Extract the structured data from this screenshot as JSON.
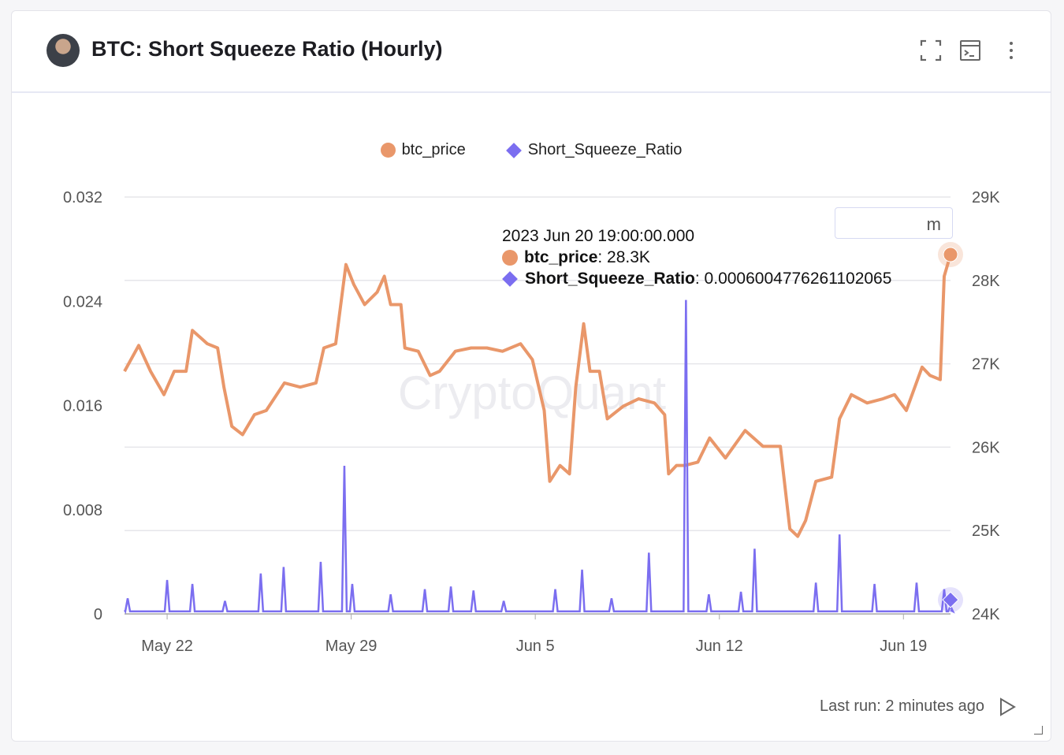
{
  "header": {
    "title": "BTC: Short Squeeze Ratio (Hourly)"
  },
  "footer": {
    "last_run": "Last run: 2 minutes ago"
  },
  "zoom_box": {
    "label": "m"
  },
  "watermark": "CryptoQuant",
  "tooltip": {
    "time": "2023 Jun 20 19:00:00.000",
    "price_label": "btc_price",
    "price_value": ": 28.3K",
    "ratio_label": "Short_Squeeze_Ratio",
    "ratio_value": ": 0.0006004776261102065"
  },
  "colors": {
    "price": "#e9976a",
    "ratio": "#7b6ef0"
  },
  "chart_data": {
    "type": "line",
    "x_unit": "days since 2023-05-22 00:00",
    "legend": [
      "btc_price",
      "Short_Squeeze_Ratio"
    ],
    "legend_position": "top-center",
    "x_ticks": [
      {
        "label": "May 22",
        "x": 0
      },
      {
        "label": "May 29",
        "x": 7
      },
      {
        "label": "Jun 5",
        "x": 14
      },
      {
        "label": "Jun 12",
        "x": 21
      },
      {
        "label": "Jun 19",
        "x": 28
      }
    ],
    "xlim": [
      -1.62,
      29.79
    ],
    "y_left": {
      "lim": [
        0,
        0.032
      ],
      "ticks": [
        {
          "label": "0",
          "v": 0
        },
        {
          "label": "0.008",
          "v": 0.008
        },
        {
          "label": "0.016",
          "v": 0.016
        },
        {
          "label": "0.024",
          "v": 0.024
        },
        {
          "label": "0.032",
          "v": 0.032
        }
      ]
    },
    "y_right": {
      "lim": [
        24,
        29
      ],
      "unit": "K",
      "ticks": [
        {
          "label": "24K",
          "v": 24
        },
        {
          "label": "25K",
          "v": 25
        },
        {
          "label": "26K",
          "v": 26
        },
        {
          "label": "27K",
          "v": 27
        },
        {
          "label": "28K",
          "v": 28
        },
        {
          "label": "29K",
          "v": 29
        }
      ]
    },
    "grid": true,
    "series": [
      {
        "name": "btc_price",
        "axis": "right",
        "points": [
          [
            -1.62,
            26.91
          ],
          [
            -1.08,
            27.22
          ],
          [
            -0.63,
            26.91
          ],
          [
            -0.12,
            26.63
          ],
          [
            0.27,
            26.91
          ],
          [
            0.72,
            26.91
          ],
          [
            0.96,
            27.4
          ],
          [
            1.53,
            27.24
          ],
          [
            1.92,
            27.19
          ],
          [
            2.16,
            26.72
          ],
          [
            2.46,
            26.25
          ],
          [
            2.87,
            26.15
          ],
          [
            3.32,
            26.39
          ],
          [
            3.77,
            26.44
          ],
          [
            4.46,
            26.77
          ],
          [
            5.06,
            26.72
          ],
          [
            5.66,
            26.77
          ],
          [
            5.96,
            27.19
          ],
          [
            6.41,
            27.24
          ],
          [
            6.8,
            28.19
          ],
          [
            7.1,
            27.95
          ],
          [
            7.51,
            27.71
          ],
          [
            7.99,
            27.86
          ],
          [
            8.26,
            28.05
          ],
          [
            8.5,
            27.71
          ],
          [
            8.89,
            27.71
          ],
          [
            9.04,
            27.19
          ],
          [
            9.55,
            27.15
          ],
          [
            10.0,
            26.86
          ],
          [
            10.36,
            26.91
          ],
          [
            10.96,
            27.15
          ],
          [
            11.56,
            27.19
          ],
          [
            12.16,
            27.19
          ],
          [
            12.75,
            27.15
          ],
          [
            13.44,
            27.24
          ],
          [
            13.89,
            27.05
          ],
          [
            14.34,
            26.44
          ],
          [
            14.55,
            25.59
          ],
          [
            14.94,
            25.78
          ],
          [
            15.3,
            25.68
          ],
          [
            15.54,
            26.72
          ],
          [
            15.84,
            27.48
          ],
          [
            16.08,
            26.91
          ],
          [
            16.44,
            26.91
          ],
          [
            16.74,
            26.34
          ],
          [
            17.34,
            26.49
          ],
          [
            17.93,
            26.58
          ],
          [
            18.53,
            26.53
          ],
          [
            18.92,
            26.39
          ],
          [
            19.07,
            25.68
          ],
          [
            19.37,
            25.78
          ],
          [
            19.67,
            25.78
          ],
          [
            20.18,
            25.82
          ],
          [
            20.63,
            26.11
          ],
          [
            21.23,
            25.87
          ],
          [
            21.98,
            26.2
          ],
          [
            22.66,
            26.01
          ],
          [
            23.32,
            26.01
          ],
          [
            23.68,
            25.02
          ],
          [
            23.98,
            24.93
          ],
          [
            24.28,
            25.12
          ],
          [
            24.67,
            25.59
          ],
          [
            25.27,
            25.64
          ],
          [
            25.57,
            26.34
          ],
          [
            26.02,
            26.63
          ],
          [
            26.62,
            26.53
          ],
          [
            27.22,
            26.58
          ],
          [
            27.66,
            26.63
          ],
          [
            28.11,
            26.44
          ],
          [
            28.71,
            26.96
          ],
          [
            29.01,
            26.86
          ],
          [
            29.4,
            26.81
          ],
          [
            29.55,
            28.05
          ],
          [
            29.79,
            28.31
          ]
        ]
      },
      {
        "name": "Short_Squeeze_Ratio",
        "axis": "left",
        "spikes": [
          [
            -1.5,
            0.0012
          ],
          [
            0,
            0.0026
          ],
          [
            0.96,
            0.0023
          ],
          [
            2.2,
            0.001
          ],
          [
            3.56,
            0.0031
          ],
          [
            4.43,
            0.0036
          ],
          [
            5.84,
            0.004
          ],
          [
            6.74,
            0.01137
          ],
          [
            7.04,
            0.0023
          ],
          [
            8.5,
            0.0015
          ],
          [
            9.8,
            0.0019
          ],
          [
            10.79,
            0.0021
          ],
          [
            11.65,
            0.0018
          ],
          [
            12.8,
            0.001
          ],
          [
            14.76,
            0.0019
          ],
          [
            15.78,
            0.0034
          ],
          [
            16.9,
            0.0012
          ],
          [
            18.32,
            0.0047
          ],
          [
            19.73,
            0.0241
          ],
          [
            20.6,
            0.0015
          ],
          [
            21.82,
            0.0017
          ],
          [
            22.34,
            0.005
          ],
          [
            24.67,
            0.0024
          ],
          [
            25.57,
            0.0061
          ],
          [
            26.9,
            0.0023
          ],
          [
            28.5,
            0.0024
          ],
          [
            29.55,
            0.0019
          ],
          [
            29.79,
            0.0006
          ]
        ]
      }
    ]
  }
}
